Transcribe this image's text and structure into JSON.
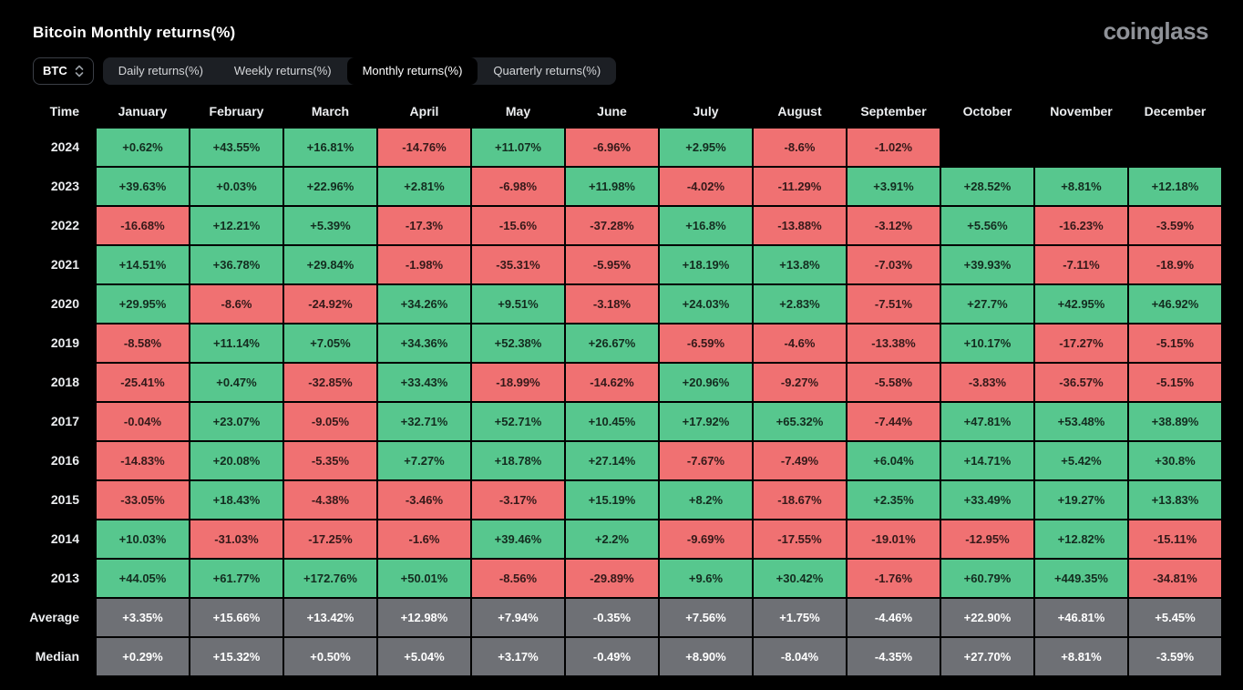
{
  "header": {
    "title": "Bitcoin Monthly returns(%)",
    "logo": "coinglass"
  },
  "controls": {
    "symbol": "BTC",
    "tabs": [
      {
        "label": "Daily returns(%)",
        "active": false
      },
      {
        "label": "Weekly returns(%)",
        "active": false
      },
      {
        "label": "Monthly returns(%)",
        "active": true
      },
      {
        "label": "Quarterly returns(%)",
        "active": false
      }
    ]
  },
  "colors": {
    "positive": "#57c78e",
    "negative": "#f07172",
    "summary": "#6e7075",
    "background": "#000000"
  },
  "table": {
    "columns": [
      "Time",
      "January",
      "February",
      "March",
      "April",
      "May",
      "June",
      "July",
      "August",
      "September",
      "October",
      "November",
      "December"
    ],
    "rows": [
      {
        "label": "2024",
        "summary": false,
        "values": [
          "+0.62%",
          "+43.55%",
          "+16.81%",
          "-14.76%",
          "+11.07%",
          "-6.96%",
          "+2.95%",
          "-8.6%",
          "-1.02%",
          "",
          "",
          ""
        ]
      },
      {
        "label": "2023",
        "summary": false,
        "values": [
          "+39.63%",
          "+0.03%",
          "+22.96%",
          "+2.81%",
          "-6.98%",
          "+11.98%",
          "-4.02%",
          "-11.29%",
          "+3.91%",
          "+28.52%",
          "+8.81%",
          "+12.18%"
        ]
      },
      {
        "label": "2022",
        "summary": false,
        "values": [
          "-16.68%",
          "+12.21%",
          "+5.39%",
          "-17.3%",
          "-15.6%",
          "-37.28%",
          "+16.8%",
          "-13.88%",
          "-3.12%",
          "+5.56%",
          "-16.23%",
          "-3.59%"
        ]
      },
      {
        "label": "2021",
        "summary": false,
        "values": [
          "+14.51%",
          "+36.78%",
          "+29.84%",
          "-1.98%",
          "-35.31%",
          "-5.95%",
          "+18.19%",
          "+13.8%",
          "-7.03%",
          "+39.93%",
          "-7.11%",
          "-18.9%"
        ]
      },
      {
        "label": "2020",
        "summary": false,
        "values": [
          "+29.95%",
          "-8.6%",
          "-24.92%",
          "+34.26%",
          "+9.51%",
          "-3.18%",
          "+24.03%",
          "+2.83%",
          "-7.51%",
          "+27.7%",
          "+42.95%",
          "+46.92%"
        ]
      },
      {
        "label": "2019",
        "summary": false,
        "values": [
          "-8.58%",
          "+11.14%",
          "+7.05%",
          "+34.36%",
          "+52.38%",
          "+26.67%",
          "-6.59%",
          "-4.6%",
          "-13.38%",
          "+10.17%",
          "-17.27%",
          "-5.15%"
        ]
      },
      {
        "label": "2018",
        "summary": false,
        "values": [
          "-25.41%",
          "+0.47%",
          "-32.85%",
          "+33.43%",
          "-18.99%",
          "-14.62%",
          "+20.96%",
          "-9.27%",
          "-5.58%",
          "-3.83%",
          "-36.57%",
          "-5.15%"
        ]
      },
      {
        "label": "2017",
        "summary": false,
        "values": [
          "-0.04%",
          "+23.07%",
          "-9.05%",
          "+32.71%",
          "+52.71%",
          "+10.45%",
          "+17.92%",
          "+65.32%",
          "-7.44%",
          "+47.81%",
          "+53.48%",
          "+38.89%"
        ]
      },
      {
        "label": "2016",
        "summary": false,
        "values": [
          "-14.83%",
          "+20.08%",
          "-5.35%",
          "+7.27%",
          "+18.78%",
          "+27.14%",
          "-7.67%",
          "-7.49%",
          "+6.04%",
          "+14.71%",
          "+5.42%",
          "+30.8%"
        ]
      },
      {
        "label": "2015",
        "summary": false,
        "values": [
          "-33.05%",
          "+18.43%",
          "-4.38%",
          "-3.46%",
          "-3.17%",
          "+15.19%",
          "+8.2%",
          "-18.67%",
          "+2.35%",
          "+33.49%",
          "+19.27%",
          "+13.83%"
        ]
      },
      {
        "label": "2014",
        "summary": false,
        "values": [
          "+10.03%",
          "-31.03%",
          "-17.25%",
          "-1.6%",
          "+39.46%",
          "+2.2%",
          "-9.69%",
          "-17.55%",
          "-19.01%",
          "-12.95%",
          "+12.82%",
          "-15.11%"
        ]
      },
      {
        "label": "2013",
        "summary": false,
        "values": [
          "+44.05%",
          "+61.77%",
          "+172.76%",
          "+50.01%",
          "-8.56%",
          "-29.89%",
          "+9.6%",
          "+30.42%",
          "-1.76%",
          "+60.79%",
          "+449.35%",
          "-34.81%"
        ]
      },
      {
        "label": "Average",
        "summary": true,
        "values": [
          "+3.35%",
          "+15.66%",
          "+13.42%",
          "+12.98%",
          "+7.94%",
          "-0.35%",
          "+7.56%",
          "+1.75%",
          "-4.46%",
          "+22.90%",
          "+46.81%",
          "+5.45%"
        ]
      },
      {
        "label": "Median",
        "summary": true,
        "values": [
          "+0.29%",
          "+15.32%",
          "+0.50%",
          "+5.04%",
          "+3.17%",
          "-0.49%",
          "+8.90%",
          "-8.04%",
          "-4.35%",
          "+27.70%",
          "+8.81%",
          "-3.59%"
        ]
      }
    ]
  },
  "chart_data": {
    "type": "heatmap",
    "title": "Bitcoin Monthly returns(%)",
    "x_labels": [
      "January",
      "February",
      "March",
      "April",
      "May",
      "June",
      "July",
      "August",
      "September",
      "October",
      "November",
      "December"
    ],
    "y_labels": [
      "2024",
      "2023",
      "2022",
      "2021",
      "2020",
      "2019",
      "2018",
      "2017",
      "2016",
      "2015",
      "2014",
      "2013",
      "Average",
      "Median"
    ],
    "values_pct": [
      [
        0.62,
        43.55,
        16.81,
        -14.76,
        11.07,
        -6.96,
        2.95,
        -8.6,
        -1.02,
        null,
        null,
        null
      ],
      [
        39.63,
        0.03,
        22.96,
        2.81,
        -6.98,
        11.98,
        -4.02,
        -11.29,
        3.91,
        28.52,
        8.81,
        12.18
      ],
      [
        -16.68,
        12.21,
        5.39,
        -17.3,
        -15.6,
        -37.28,
        16.8,
        -13.88,
        -3.12,
        5.56,
        -16.23,
        -3.59
      ],
      [
        14.51,
        36.78,
        29.84,
        -1.98,
        -35.31,
        -5.95,
        18.19,
        13.8,
        -7.03,
        39.93,
        -7.11,
        -18.9
      ],
      [
        29.95,
        -8.6,
        -24.92,
        34.26,
        9.51,
        -3.18,
        24.03,
        2.83,
        -7.51,
        27.7,
        42.95,
        46.92
      ],
      [
        -8.58,
        11.14,
        7.05,
        34.36,
        52.38,
        26.67,
        -6.59,
        -4.6,
        -13.38,
        10.17,
        -17.27,
        -5.15
      ],
      [
        -25.41,
        0.47,
        -32.85,
        33.43,
        -18.99,
        -14.62,
        20.96,
        -9.27,
        -5.58,
        -3.83,
        -36.57,
        -5.15
      ],
      [
        -0.04,
        23.07,
        -9.05,
        32.71,
        52.71,
        10.45,
        17.92,
        65.32,
        -7.44,
        47.81,
        53.48,
        38.89
      ],
      [
        -14.83,
        20.08,
        -5.35,
        7.27,
        18.78,
        27.14,
        -7.67,
        -7.49,
        6.04,
        14.71,
        5.42,
        30.8
      ],
      [
        -33.05,
        18.43,
        -4.38,
        -3.46,
        -3.17,
        15.19,
        8.2,
        -18.67,
        2.35,
        33.49,
        19.27,
        13.83
      ],
      [
        10.03,
        -31.03,
        -17.25,
        -1.6,
        39.46,
        2.2,
        -9.69,
        -17.55,
        -19.01,
        -12.95,
        12.82,
        -15.11
      ],
      [
        44.05,
        61.77,
        172.76,
        50.01,
        -8.56,
        -29.89,
        9.6,
        30.42,
        -1.76,
        60.79,
        449.35,
        -34.81
      ],
      [
        3.35,
        15.66,
        13.42,
        12.98,
        7.94,
        -0.35,
        7.56,
        1.75,
        -4.46,
        22.9,
        46.81,
        5.45
      ],
      [
        0.29,
        15.32,
        0.5,
        5.04,
        3.17,
        -0.49,
        8.9,
        -8.04,
        -4.35,
        27.7,
        8.81,
        -3.59
      ]
    ],
    "legend": "green = positive monthly return, red = negative monthly return, gray = summary rows (Average, Median)",
    "legend_position": "none",
    "grid": false
  }
}
